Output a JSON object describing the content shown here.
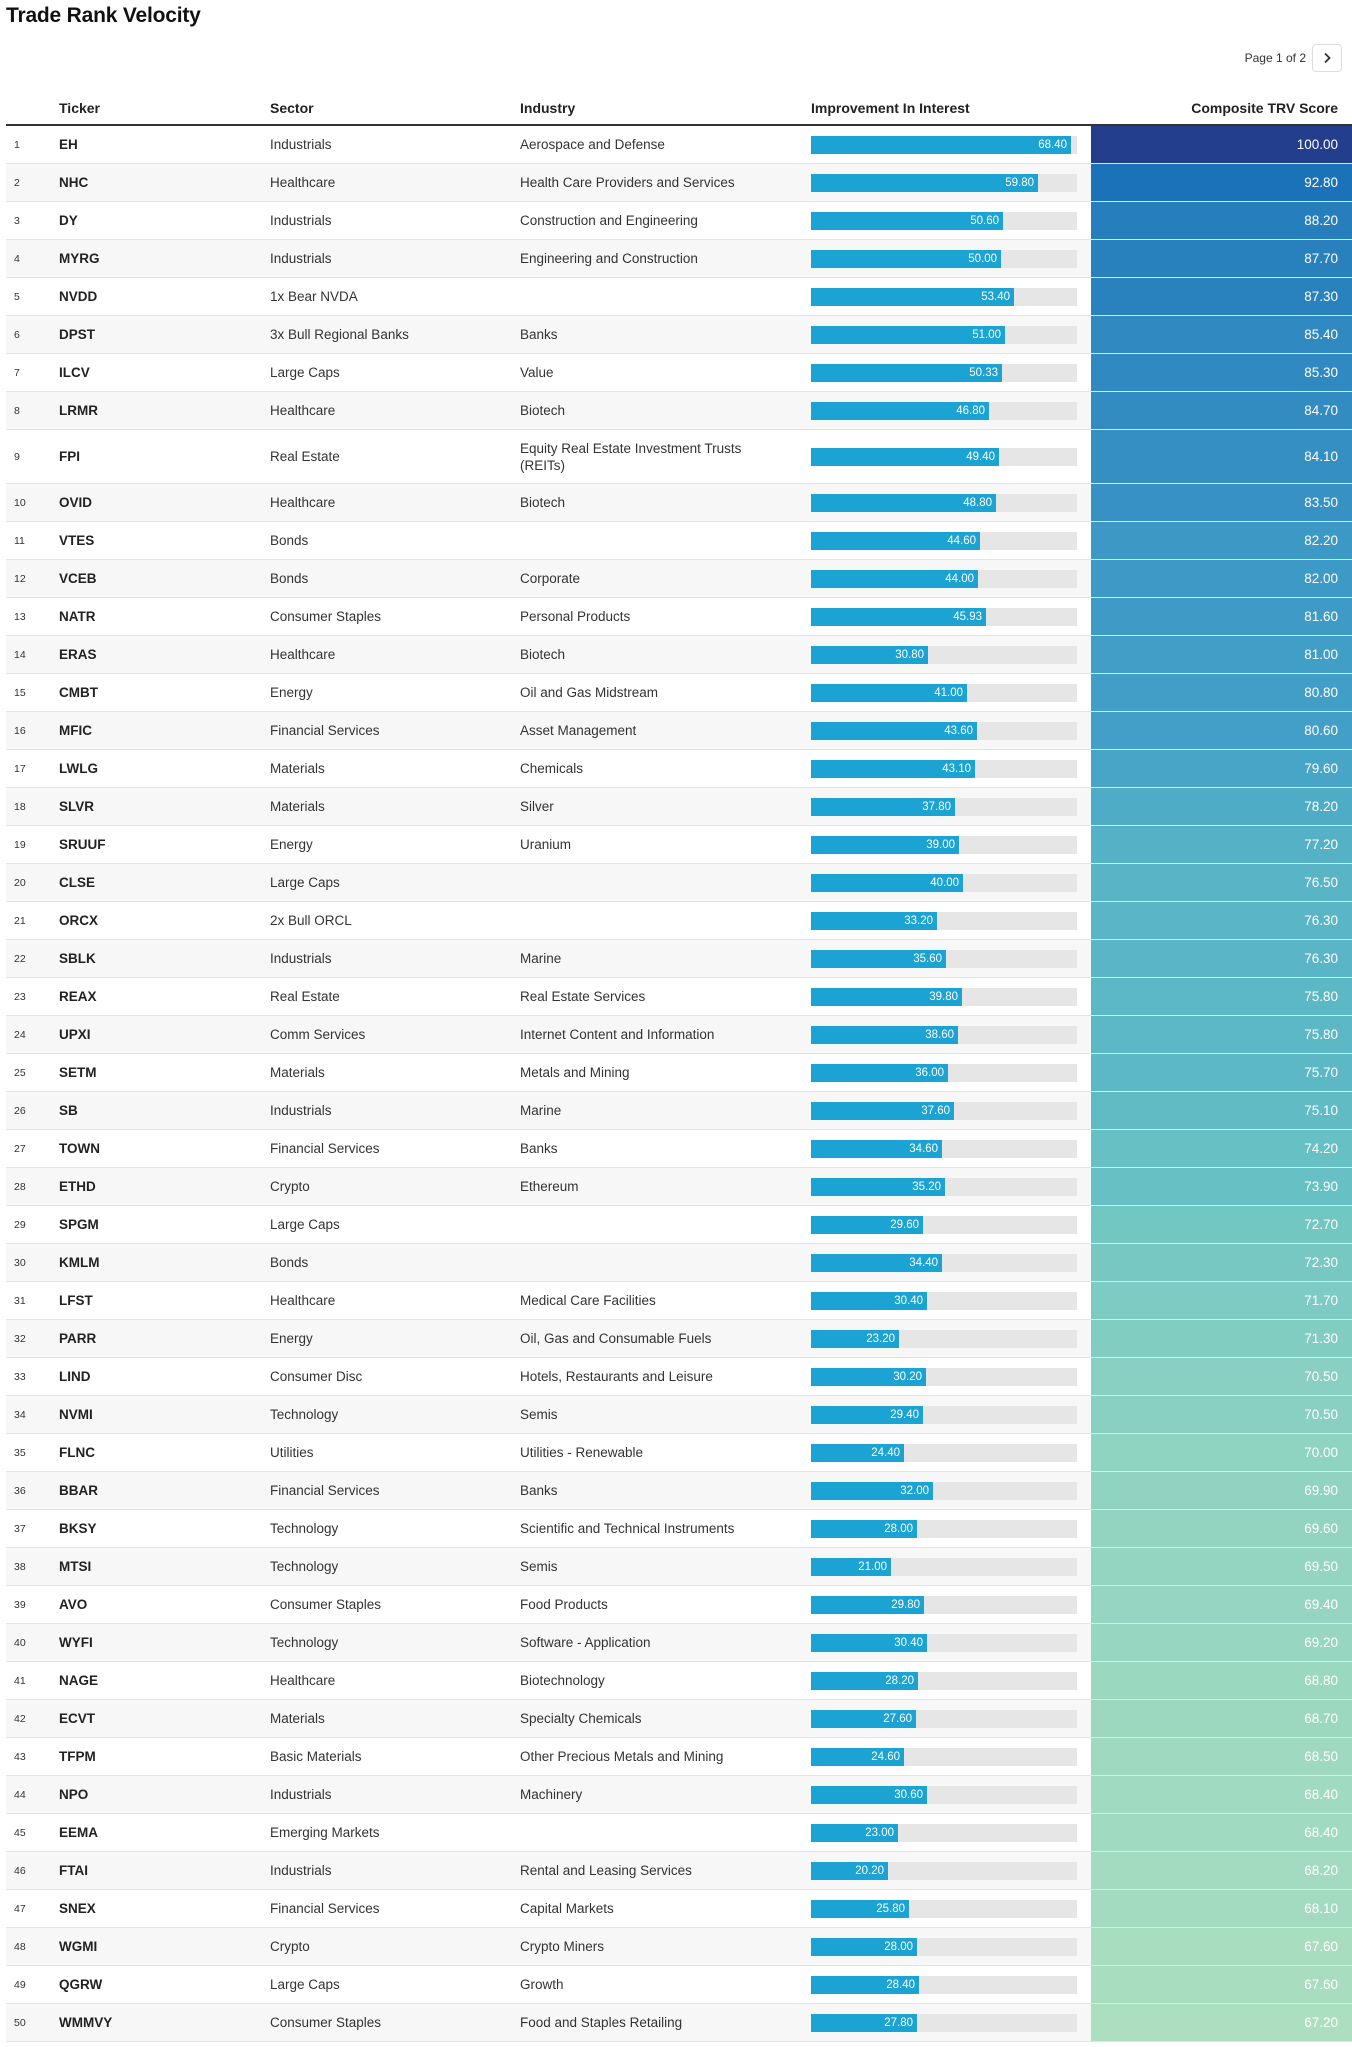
{
  "header": {
    "title": "Trade Rank Velocity"
  },
  "pager": {
    "label": "Page 1 of 2",
    "next_icon": "chevron-right-icon"
  },
  "colors": {
    "bar": "#1ba3d3",
    "bar_track": "#e6e6e6",
    "score_gradient": [
      "#acdfbf",
      "#68c2c4",
      "#43a1c8",
      "#2a82be",
      "#1b70b8",
      "#223e8d"
    ]
  },
  "chart_data": {
    "type": "table",
    "title": "Trade Rank Velocity",
    "columns": [
      "Ticker",
      "Sector",
      "Industry",
      "Improvement In Interest",
      "Composite TRV Score"
    ],
    "bar_range": [
      0,
      70
    ],
    "score_range": [
      67.2,
      100
    ],
    "rows": [
      {
        "rank": "1",
        "ticker": "EH",
        "sector": "Industrials",
        "industry": "Aerospace and Defense",
        "interest": 68.4,
        "interest_label": "68.40",
        "score": 100.0,
        "score_label": "100.00"
      },
      {
        "rank": "2",
        "ticker": "NHC",
        "sector": "Healthcare",
        "industry": "Health Care Providers and Services",
        "interest": 59.8,
        "interest_label": "59.80",
        "score": 92.8,
        "score_label": "92.80"
      },
      {
        "rank": "3",
        "ticker": "DY",
        "sector": "Industrials",
        "industry": "Construction and Engineering",
        "interest": 50.6,
        "interest_label": "50.60",
        "score": 88.2,
        "score_label": "88.20"
      },
      {
        "rank": "4",
        "ticker": "MYRG",
        "sector": "Industrials",
        "industry": "Engineering and Construction",
        "interest": 50.0,
        "interest_label": "50.00",
        "score": 87.7,
        "score_label": "87.70"
      },
      {
        "rank": "5",
        "ticker": "NVDD",
        "sector": "1x Bear NVDA",
        "industry": "",
        "interest": 53.4,
        "interest_label": "53.40",
        "score": 87.3,
        "score_label": "87.30"
      },
      {
        "rank": "6",
        "ticker": "DPST",
        "sector": "3x Bull Regional Banks",
        "industry": "Banks",
        "interest": 51.0,
        "interest_label": "51.00",
        "score": 85.4,
        "score_label": "85.40"
      },
      {
        "rank": "7",
        "ticker": "ILCV",
        "sector": "Large Caps",
        "industry": "Value",
        "interest": 50.33,
        "interest_label": "50.33",
        "score": 85.3,
        "score_label": "85.30"
      },
      {
        "rank": "8",
        "ticker": "LRMR",
        "sector": "Healthcare",
        "industry": "Biotech",
        "interest": 46.8,
        "interest_label": "46.80",
        "score": 84.7,
        "score_label": "84.70"
      },
      {
        "rank": "9",
        "ticker": "FPI",
        "sector": "Real Estate",
        "industry": "Equity Real Estate Investment Trusts (REITs)",
        "interest": 49.4,
        "interest_label": "49.40",
        "score": 84.1,
        "score_label": "84.10"
      },
      {
        "rank": "10",
        "ticker": "OVID",
        "sector": "Healthcare",
        "industry": "Biotech",
        "interest": 48.8,
        "interest_label": "48.80",
        "score": 83.5,
        "score_label": "83.50"
      },
      {
        "rank": "11",
        "ticker": "VTES",
        "sector": "Bonds",
        "industry": "",
        "interest": 44.6,
        "interest_label": "44.60",
        "score": 82.2,
        "score_label": "82.20"
      },
      {
        "rank": "12",
        "ticker": "VCEB",
        "sector": "Bonds",
        "industry": "Corporate",
        "interest": 44.0,
        "interest_label": "44.00",
        "score": 82.0,
        "score_label": "82.00"
      },
      {
        "rank": "13",
        "ticker": "NATR",
        "sector": "Consumer Staples",
        "industry": "Personal Products",
        "interest": 45.93,
        "interest_label": "45.93",
        "score": 81.6,
        "score_label": "81.60"
      },
      {
        "rank": "14",
        "ticker": "ERAS",
        "sector": "Healthcare",
        "industry": "Biotech",
        "interest": 30.8,
        "interest_label": "30.80",
        "score": 81.0,
        "score_label": "81.00"
      },
      {
        "rank": "15",
        "ticker": "CMBT",
        "sector": "Energy",
        "industry": "Oil and Gas Midstream",
        "interest": 41.0,
        "interest_label": "41.00",
        "score": 80.8,
        "score_label": "80.80"
      },
      {
        "rank": "16",
        "ticker": "MFIC",
        "sector": "Financial Services",
        "industry": "Asset Management",
        "interest": 43.6,
        "interest_label": "43.60",
        "score": 80.6,
        "score_label": "80.60"
      },
      {
        "rank": "17",
        "ticker": "LWLG",
        "sector": "Materials",
        "industry": "Chemicals",
        "interest": 43.1,
        "interest_label": "43.10",
        "score": 79.6,
        "score_label": "79.60"
      },
      {
        "rank": "18",
        "ticker": "SLVR",
        "sector": "Materials",
        "industry": "Silver",
        "interest": 37.8,
        "interest_label": "37.80",
        "score": 78.2,
        "score_label": "78.20"
      },
      {
        "rank": "19",
        "ticker": "SRUUF",
        "sector": "Energy",
        "industry": "Uranium",
        "interest": 39.0,
        "interest_label": "39.00",
        "score": 77.2,
        "score_label": "77.20"
      },
      {
        "rank": "20",
        "ticker": "CLSE",
        "sector": "Large Caps",
        "industry": "",
        "interest": 40.0,
        "interest_label": "40.00",
        "score": 76.5,
        "score_label": "76.50"
      },
      {
        "rank": "21",
        "ticker": "ORCX",
        "sector": "2x Bull ORCL",
        "industry": "",
        "interest": 33.2,
        "interest_label": "33.20",
        "score": 76.3,
        "score_label": "76.30"
      },
      {
        "rank": "22",
        "ticker": "SBLK",
        "sector": "Industrials",
        "industry": "Marine",
        "interest": 35.6,
        "interest_label": "35.60",
        "score": 76.3,
        "score_label": "76.30"
      },
      {
        "rank": "23",
        "ticker": "REAX",
        "sector": "Real Estate",
        "industry": "Real Estate Services",
        "interest": 39.8,
        "interest_label": "39.80",
        "score": 75.8,
        "score_label": "75.80"
      },
      {
        "rank": "24",
        "ticker": "UPXI",
        "sector": "Comm Services",
        "industry": "Internet Content and Information",
        "interest": 38.6,
        "interest_label": "38.60",
        "score": 75.8,
        "score_label": "75.80"
      },
      {
        "rank": "25",
        "ticker": "SETM",
        "sector": "Materials",
        "industry": "Metals and Mining",
        "interest": 36.0,
        "interest_label": "36.00",
        "score": 75.7,
        "score_label": "75.70"
      },
      {
        "rank": "26",
        "ticker": "SB",
        "sector": "Industrials",
        "industry": "Marine",
        "interest": 37.6,
        "interest_label": "37.60",
        "score": 75.1,
        "score_label": "75.10"
      },
      {
        "rank": "27",
        "ticker": "TOWN",
        "sector": "Financial Services",
        "industry": "Banks",
        "interest": 34.6,
        "interest_label": "34.60",
        "score": 74.2,
        "score_label": "74.20"
      },
      {
        "rank": "28",
        "ticker": "ETHD",
        "sector": "Crypto",
        "industry": "Ethereum",
        "interest": 35.2,
        "interest_label": "35.20",
        "score": 73.9,
        "score_label": "73.90"
      },
      {
        "rank": "29",
        "ticker": "SPGM",
        "sector": "Large Caps",
        "industry": "",
        "interest": 29.6,
        "interest_label": "29.60",
        "score": 72.7,
        "score_label": "72.70"
      },
      {
        "rank": "30",
        "ticker": "KMLM",
        "sector": "Bonds",
        "industry": "",
        "interest": 34.4,
        "interest_label": "34.40",
        "score": 72.3,
        "score_label": "72.30"
      },
      {
        "rank": "31",
        "ticker": "LFST",
        "sector": "Healthcare",
        "industry": "Medical Care Facilities",
        "interest": 30.4,
        "interest_label": "30.40",
        "score": 71.7,
        "score_label": "71.70"
      },
      {
        "rank": "32",
        "ticker": "PARR",
        "sector": "Energy",
        "industry": "Oil, Gas and Consumable Fuels",
        "interest": 23.2,
        "interest_label": "23.20",
        "score": 71.3,
        "score_label": "71.30"
      },
      {
        "rank": "33",
        "ticker": "LIND",
        "sector": "Consumer Disc",
        "industry": "Hotels, Restaurants and Leisure",
        "interest": 30.2,
        "interest_label": "30.20",
        "score": 70.5,
        "score_label": "70.50"
      },
      {
        "rank": "34",
        "ticker": "NVMI",
        "sector": "Technology",
        "industry": "Semis",
        "interest": 29.4,
        "interest_label": "29.40",
        "score": 70.5,
        "score_label": "70.50"
      },
      {
        "rank": "35",
        "ticker": "FLNC",
        "sector": "Utilities",
        "industry": "Utilities - Renewable",
        "interest": 24.4,
        "interest_label": "24.40",
        "score": 70.0,
        "score_label": "70.00"
      },
      {
        "rank": "36",
        "ticker": "BBAR",
        "sector": "Financial Services",
        "industry": "Banks",
        "interest": 32.0,
        "interest_label": "32.00",
        "score": 69.9,
        "score_label": "69.90"
      },
      {
        "rank": "37",
        "ticker": "BKSY",
        "sector": "Technology",
        "industry": "Scientific and Technical Instruments",
        "interest": 28.0,
        "interest_label": "28.00",
        "score": 69.6,
        "score_label": "69.60"
      },
      {
        "rank": "38",
        "ticker": "MTSI",
        "sector": "Technology",
        "industry": "Semis",
        "interest": 21.0,
        "interest_label": "21.00",
        "score": 69.5,
        "score_label": "69.50"
      },
      {
        "rank": "39",
        "ticker": "AVO",
        "sector": "Consumer Staples",
        "industry": "Food Products",
        "interest": 29.8,
        "interest_label": "29.80",
        "score": 69.4,
        "score_label": "69.40"
      },
      {
        "rank": "40",
        "ticker": "WYFI",
        "sector": "Technology",
        "industry": "Software - Application",
        "interest": 30.4,
        "interest_label": "30.40",
        "score": 69.2,
        "score_label": "69.20"
      },
      {
        "rank": "41",
        "ticker": "NAGE",
        "sector": "Healthcare",
        "industry": "Biotechnology",
        "interest": 28.2,
        "interest_label": "28.20",
        "score": 68.8,
        "score_label": "68.80"
      },
      {
        "rank": "42",
        "ticker": "ECVT",
        "sector": "Materials",
        "industry": "Specialty Chemicals",
        "interest": 27.6,
        "interest_label": "27.60",
        "score": 68.7,
        "score_label": "68.70"
      },
      {
        "rank": "43",
        "ticker": "TFPM",
        "sector": "Basic Materials",
        "industry": "Other Precious Metals and Mining",
        "interest": 24.6,
        "interest_label": "24.60",
        "score": 68.5,
        "score_label": "68.50"
      },
      {
        "rank": "44",
        "ticker": "NPO",
        "sector": "Industrials",
        "industry": "Machinery",
        "interest": 30.6,
        "interest_label": "30.60",
        "score": 68.4,
        "score_label": "68.40"
      },
      {
        "rank": "45",
        "ticker": "EEMA",
        "sector": "Emerging Markets",
        "industry": "",
        "interest": 23.0,
        "interest_label": "23.00",
        "score": 68.4,
        "score_label": "68.40"
      },
      {
        "rank": "46",
        "ticker": "FTAI",
        "sector": "Industrials",
        "industry": "Rental and Leasing Services",
        "interest": 20.2,
        "interest_label": "20.20",
        "score": 68.2,
        "score_label": "68.20"
      },
      {
        "rank": "47",
        "ticker": "SNEX",
        "sector": "Financial Services",
        "industry": "Capital Markets",
        "interest": 25.8,
        "interest_label": "25.80",
        "score": 68.1,
        "score_label": "68.10"
      },
      {
        "rank": "48",
        "ticker": "WGMI",
        "sector": "Crypto",
        "industry": "Crypto Miners",
        "interest": 28.0,
        "interest_label": "28.00",
        "score": 67.6,
        "score_label": "67.60"
      },
      {
        "rank": "49",
        "ticker": "QGRW",
        "sector": "Large Caps",
        "industry": "Growth",
        "interest": 28.4,
        "interest_label": "28.40",
        "score": 67.6,
        "score_label": "67.60"
      },
      {
        "rank": "50",
        "ticker": "WMMVY",
        "sector": "Consumer Staples",
        "industry": "Food and Staples Retailing",
        "interest": 27.8,
        "interest_label": "27.80",
        "score": 67.2,
        "score_label": "67.20"
      }
    ]
  }
}
